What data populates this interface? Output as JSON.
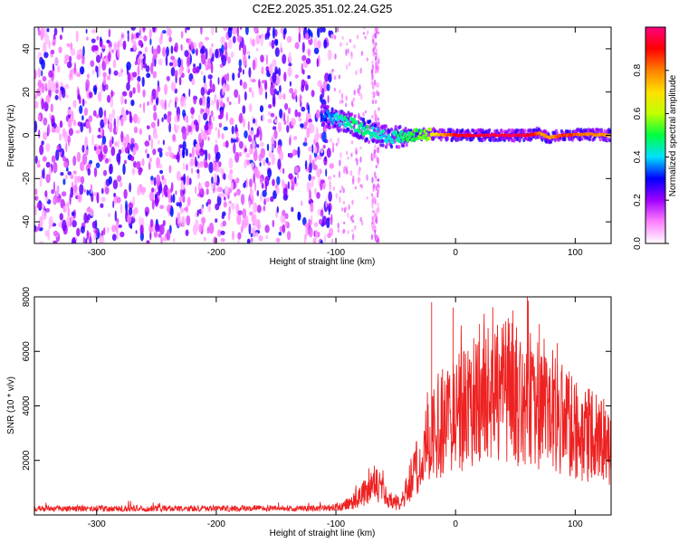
{
  "figure": {
    "title": "C2E2.2025.351.02.24.G25"
  },
  "chart_data": [
    {
      "type": "heatmap",
      "title": "C2E2.2025.351.02.24.G25",
      "xlabel": "Height of straight line (km)",
      "ylabel": "Frequency (Hz)",
      "xlim": [
        -352,
        130
      ],
      "ylim": [
        -50,
        50
      ],
      "x_ticks": [
        -300,
        -200,
        -100,
        0,
        100
      ],
      "y_ticks": [
        -40,
        -20,
        0,
        20,
        40
      ],
      "colorbar": {
        "label": "Normalized spectral amplitude",
        "range": [
          0,
          1
        ],
        "ticks": [
          "0.0",
          "0.2",
          "0.4",
          "0.6",
          "0.8"
        ],
        "colors": [
          "#ffffff",
          "#ff80ff",
          "#a000ff",
          "#0000ff",
          "#00e0ff",
          "#00ff40",
          "#c0ff00",
          "#ffe000",
          "#ff8000",
          "#ff0000",
          "#ff0080"
        ]
      },
      "noise_region_x": [
        -352,
        -103
      ],
      "vertical_streak_x": -67,
      "signal_track": [
        {
          "x": -112,
          "freq": 10,
          "amp": 0.35
        },
        {
          "x": -105,
          "freq": 8,
          "amp": 0.4
        },
        {
          "x": -98,
          "freq": 7,
          "amp": 0.45
        },
        {
          "x": -90,
          "freq": 6,
          "amp": 0.5
        },
        {
          "x": -82,
          "freq": 4,
          "amp": 0.5
        },
        {
          "x": -74,
          "freq": 2,
          "amp": 0.5
        },
        {
          "x": -65,
          "freq": 0.5,
          "amp": 0.45
        },
        {
          "x": -55,
          "freq": -1,
          "amp": 0.45
        },
        {
          "x": -45,
          "freq": -0.5,
          "amp": 0.5
        },
        {
          "x": -35,
          "freq": 0,
          "amp": 0.55
        },
        {
          "x": -25,
          "freq": 0.5,
          "amp": 0.6
        },
        {
          "x": -15,
          "freq": 0.5,
          "amp": 0.75
        },
        {
          "x": 0,
          "freq": 0,
          "amp": 0.95
        },
        {
          "x": 20,
          "freq": 0,
          "amp": 0.98
        },
        {
          "x": 40,
          "freq": 0,
          "amp": 1.0
        },
        {
          "x": 60,
          "freq": 0,
          "amp": 1.0
        },
        {
          "x": 70,
          "freq": 1,
          "amp": 0.85
        },
        {
          "x": 78,
          "freq": -1,
          "amp": 0.8
        },
        {
          "x": 90,
          "freq": 0,
          "amp": 0.9
        },
        {
          "x": 110,
          "freq": 0.5,
          "amp": 0.85
        },
        {
          "x": 130,
          "freq": 0,
          "amp": 0.8
        }
      ]
    },
    {
      "type": "line",
      "xlabel": "Height of straight line (km)",
      "ylabel": "SNR (10 * v/v)",
      "xlim": [
        -352,
        130
      ],
      "ylim": [
        0,
        8000
      ],
      "x_ticks": [
        -300,
        -200,
        -100,
        0,
        100
      ],
      "y_ticks": [
        2000,
        4000,
        6000,
        8000
      ],
      "series": [
        {
          "color": "#ee2222",
          "envelope": [
            {
              "x": -352,
              "y": 250
            },
            {
              "x": -200,
              "y": 250
            },
            {
              "x": -110,
              "y": 260
            },
            {
              "x": -95,
              "y": 320
            },
            {
              "x": -85,
              "y": 600
            },
            {
              "x": -75,
              "y": 1000
            },
            {
              "x": -68,
              "y": 1300
            },
            {
              "x": -60,
              "y": 1000
            },
            {
              "x": -52,
              "y": 450
            },
            {
              "x": -45,
              "y": 600
            },
            {
              "x": -38,
              "y": 1400
            },
            {
              "x": -30,
              "y": 2300
            },
            {
              "x": -20,
              "y": 3200
            },
            {
              "x": -10,
              "y": 3900
            },
            {
              "x": 0,
              "y": 4300
            },
            {
              "x": 15,
              "y": 4700
            },
            {
              "x": 30,
              "y": 5000
            },
            {
              "x": 45,
              "y": 5100
            },
            {
              "x": 60,
              "y": 5000
            },
            {
              "x": 75,
              "y": 4600
            },
            {
              "x": 90,
              "y": 4000
            },
            {
              "x": 105,
              "y": 3500
            },
            {
              "x": 120,
              "y": 3200
            },
            {
              "x": 130,
              "y": 3000
            }
          ],
          "peaks": [
            {
              "x": -20,
              "y": 7800
            },
            {
              "x": -2,
              "y": 7600
            },
            {
              "x": 20,
              "y": 7000
            },
            {
              "x": 48,
              "y": 7500
            },
            {
              "x": 60,
              "y": 8000
            },
            {
              "x": 70,
              "y": 7000
            },
            {
              "x": 85,
              "y": 6300
            }
          ]
        }
      ]
    }
  ]
}
